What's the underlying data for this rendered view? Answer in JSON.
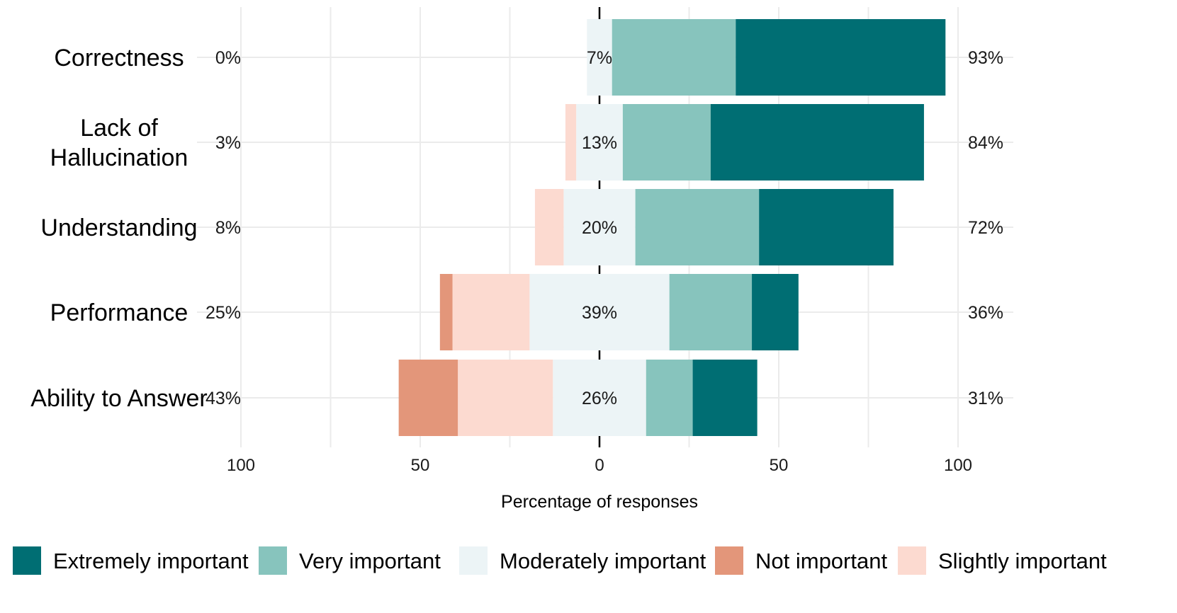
{
  "chart_data": {
    "type": "bar",
    "subtype": "diverging-stacked-likert",
    "title": "",
    "xlabel": "Percentage of responses",
    "ylabel": "",
    "xlim": [
      -100,
      100
    ],
    "x_ticks": [
      -100,
      -50,
      0,
      50,
      100
    ],
    "x_tick_labels": [
      "100",
      "50",
      "0",
      "50",
      "100"
    ],
    "levels": [
      "Not important",
      "Slightly important",
      "Moderately important",
      "Very important",
      "Extremely important"
    ],
    "colors": {
      "Extremely important": "#006E73",
      "Very important": "#87C4BD",
      "Moderately important": "#ECF4F6",
      "Not important": "#E3967A",
      "Slightly important": "#FCDAD0"
    },
    "categories": [
      {
        "label_lines": [
          "Correctness"
        ],
        "left_pct": "0%",
        "center_pct": "7%",
        "right_pct": "93%",
        "values": {
          "Not important": 0,
          "Slightly important": 0,
          "Moderately important": 7,
          "Very important": 34.5,
          "Extremely important": 58.5
        }
      },
      {
        "label_lines": [
          "Lack of",
          "Hallucination"
        ],
        "left_pct": "3%",
        "center_pct": "13%",
        "right_pct": "84%",
        "values": {
          "Not important": 0,
          "Slightly important": 3,
          "Moderately important": 13,
          "Very important": 24.5,
          "Extremely important": 59.5
        }
      },
      {
        "label_lines": [
          "Understanding"
        ],
        "left_pct": "8%",
        "center_pct": "20%",
        "right_pct": "72%",
        "values": {
          "Not important": 0,
          "Slightly important": 8,
          "Moderately important": 20,
          "Very important": 34.5,
          "Extremely important": 37.5
        }
      },
      {
        "label_lines": [
          "Performance"
        ],
        "left_pct": "25%",
        "center_pct": "39%",
        "right_pct": "36%",
        "values": {
          "Not important": 3.5,
          "Slightly important": 21.5,
          "Moderately important": 39,
          "Very important": 23,
          "Extremely important": 13
        }
      },
      {
        "label_lines": [
          "Ability to Answer"
        ],
        "left_pct": "43%",
        "center_pct": "26%",
        "right_pct": "31%",
        "values": {
          "Not important": 16.5,
          "Slightly important": 26.5,
          "Moderately important": 26,
          "Very important": 13,
          "Extremely important": 18
        }
      }
    ],
    "legend": {
      "position": "bottom",
      "order": [
        "Extremely important",
        "Very important",
        "Moderately important",
        "Not important",
        "Slightly important"
      ]
    }
  }
}
